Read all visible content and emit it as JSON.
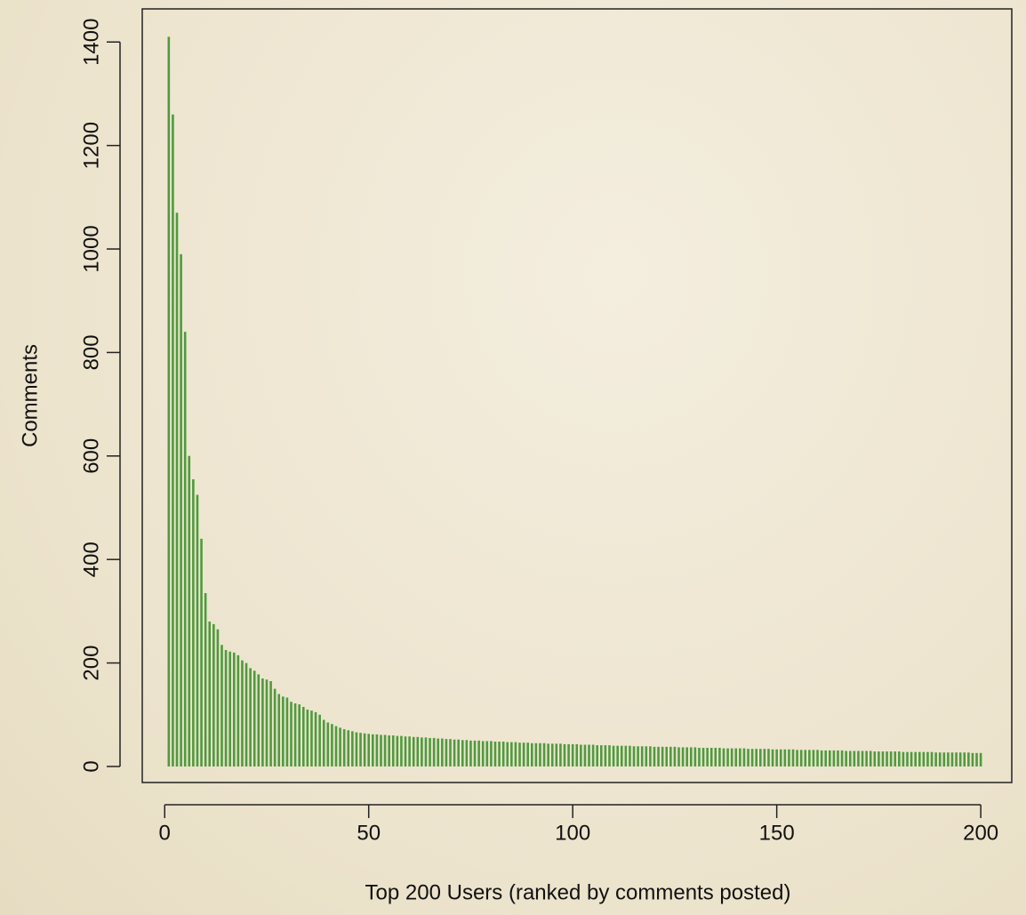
{
  "chart_data": {
    "type": "spike",
    "x_label": "Top 200 Users (ranked by comments posted)",
    "y_label": "Comments",
    "color": "#4f9a3e",
    "xlim": [
      -5.5,
      207.6
    ],
    "ylim": [
      -31,
      1464
    ],
    "xticks": [
      0,
      50,
      100,
      150,
      200
    ],
    "yticks": [
      0,
      200,
      400,
      600,
      800,
      1000,
      1200,
      1400
    ],
    "x": [
      1,
      2,
      3,
      4,
      5,
      6,
      7,
      8,
      9,
      10,
      11,
      12,
      13,
      14,
      15,
      16,
      17,
      18,
      19,
      20,
      21,
      22,
      23,
      24,
      25,
      26,
      27,
      28,
      29,
      30,
      31,
      32,
      33,
      34,
      35,
      36,
      37,
      38,
      39,
      40,
      41,
      42,
      43,
      44,
      45,
      46,
      47,
      48,
      49,
      50,
      51,
      52,
      53,
      54,
      55,
      56,
      57,
      58,
      59,
      60,
      61,
      62,
      63,
      64,
      65,
      66,
      67,
      68,
      69,
      70,
      71,
      72,
      73,
      74,
      75,
      76,
      77,
      78,
      79,
      80,
      81,
      82,
      83,
      84,
      85,
      86,
      87,
      88,
      89,
      90,
      91,
      92,
      93,
      94,
      95,
      96,
      97,
      98,
      99,
      100,
      101,
      102,
      103,
      104,
      105,
      106,
      107,
      108,
      109,
      110,
      111,
      112,
      113,
      114,
      115,
      116,
      117,
      118,
      119,
      120,
      121,
      122,
      123,
      124,
      125,
      126,
      127,
      128,
      129,
      130,
      131,
      132,
      133,
      134,
      135,
      136,
      137,
      138,
      139,
      140,
      141,
      142,
      143,
      144,
      145,
      146,
      147,
      148,
      149,
      150,
      151,
      152,
      153,
      154,
      155,
      156,
      157,
      158,
      159,
      160,
      161,
      162,
      163,
      164,
      165,
      166,
      167,
      168,
      169,
      170,
      171,
      172,
      173,
      174,
      175,
      176,
      177,
      178,
      179,
      180,
      181,
      182,
      183,
      184,
      185,
      186,
      187,
      188,
      189,
      190,
      191,
      192,
      193,
      194,
      195,
      196,
      197,
      198,
      199,
      200
    ],
    "values": [
      1410,
      1260,
      1070,
      990,
      840,
      600,
      555,
      525,
      440,
      335,
      280,
      275,
      265,
      235,
      225,
      222,
      220,
      215,
      205,
      200,
      190,
      185,
      178,
      170,
      168,
      165,
      150,
      140,
      135,
      133,
      125,
      122,
      120,
      115,
      110,
      108,
      105,
      100,
      90,
      85,
      82,
      78,
      75,
      72,
      70,
      68,
      66,
      65,
      64,
      63,
      62,
      62,
      61,
      61,
      60,
      60,
      59,
      59,
      58,
      58,
      57,
      57,
      56,
      56,
      55,
      55,
      54,
      54,
      53,
      53,
      52,
      52,
      51,
      51,
      50,
      50,
      50,
      49,
      49,
      49,
      48,
      48,
      48,
      47,
      47,
      47,
      46,
      46,
      46,
      45,
      45,
      45,
      45,
      44,
      44,
      44,
      44,
      43,
      43,
      43,
      43,
      42,
      42,
      42,
      42,
      41,
      41,
      41,
      41,
      40,
      40,
      40,
      40,
      40,
      39,
      39,
      39,
      39,
      39,
      38,
      38,
      38,
      38,
      38,
      38,
      37,
      37,
      37,
      37,
      37,
      36,
      36,
      36,
      36,
      36,
      36,
      35,
      35,
      35,
      35,
      35,
      35,
      34,
      34,
      34,
      34,
      34,
      34,
      33,
      33,
      33,
      33,
      33,
      33,
      32,
      32,
      32,
      32,
      32,
      32,
      31,
      31,
      31,
      31,
      31,
      31,
      30,
      30,
      30,
      30,
      30,
      30,
      30,
      29,
      29,
      29,
      29,
      29,
      29,
      29,
      28,
      28,
      28,
      28,
      28,
      28,
      28,
      28,
      27,
      27,
      27,
      27,
      27,
      27,
      27,
      27,
      27,
      26,
      26,
      26
    ]
  }
}
